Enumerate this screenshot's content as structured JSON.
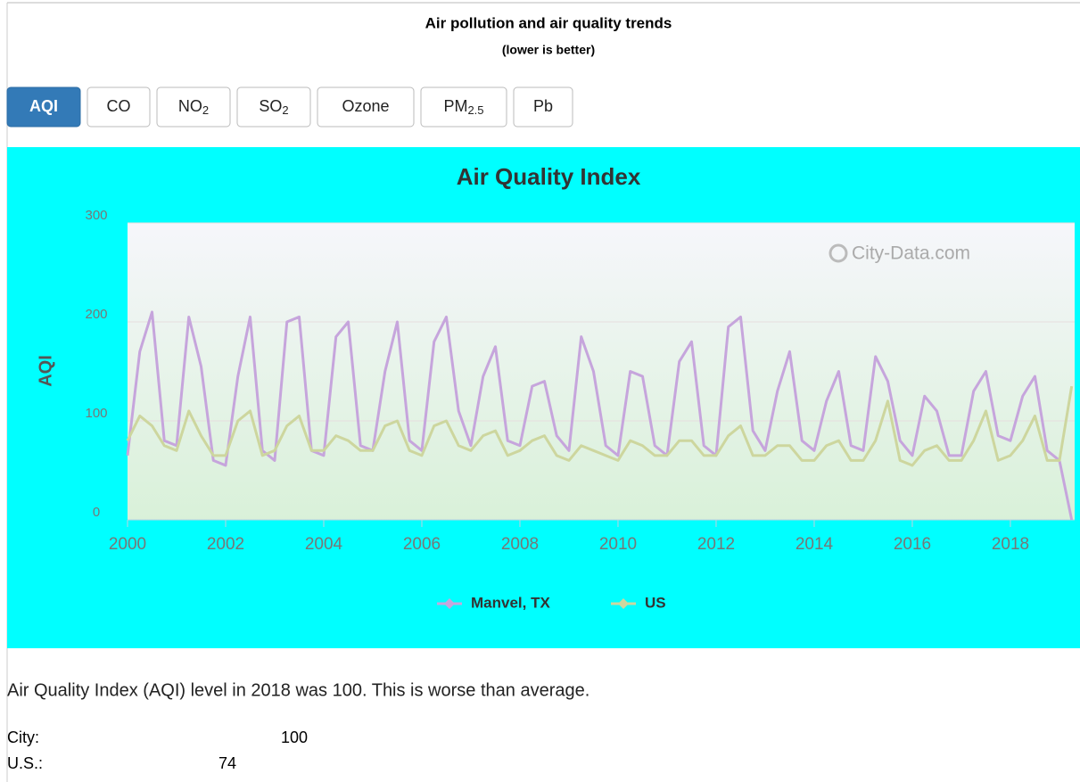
{
  "header": {
    "title": "Air pollution and air quality trends",
    "subtitle": "(lower is better)"
  },
  "tabs": [
    {
      "label": "AQI",
      "active": true
    },
    {
      "label": "CO"
    },
    {
      "label": "NO",
      "sub": "2"
    },
    {
      "label": "SO",
      "sub": "2"
    },
    {
      "label": "Ozone"
    },
    {
      "label": "PM",
      "sub": "2.5"
    },
    {
      "label": "Pb"
    }
  ],
  "chart_data": {
    "type": "line",
    "title": "Air Quality Index",
    "y_label": "AQI",
    "watermark": "City-Data.com",
    "x": [
      2000,
      2000.25,
      2000.5,
      2000.75,
      2001,
      2001.25,
      2001.5,
      2001.75,
      2002,
      2002.25,
      2002.5,
      2002.75,
      2003,
      2003.25,
      2003.5,
      2003.75,
      2004,
      2004.25,
      2004.5,
      2004.75,
      2005,
      2005.25,
      2005.5,
      2005.75,
      2006,
      2006.25,
      2006.5,
      2006.75,
      2007,
      2007.25,
      2007.5,
      2007.75,
      2008,
      2008.25,
      2008.5,
      2008.75,
      2009,
      2009.25,
      2009.5,
      2009.75,
      2010,
      2010.25,
      2010.5,
      2010.75,
      2011,
      2011.25,
      2011.5,
      2011.75,
      2012,
      2012.25,
      2012.5,
      2012.75,
      2013,
      2013.25,
      2013.5,
      2013.75,
      2014,
      2014.25,
      2014.5,
      2014.75,
      2015,
      2015.25,
      2015.5,
      2015.75,
      2016,
      2016.25,
      2016.5,
      2016.75,
      2017,
      2017.25,
      2017.5,
      2017.75,
      2018,
      2018.25,
      2018.5,
      2018.75,
      2019,
      2019.25
    ],
    "series": [
      {
        "name": "Manvel, TX",
        "color": "#c6a5dc",
        "values": [
          65,
          170,
          210,
          80,
          75,
          205,
          155,
          60,
          55,
          145,
          205,
          70,
          60,
          200,
          205,
          70,
          65,
          185,
          200,
          75,
          70,
          150,
          200,
          80,
          70,
          180,
          205,
          110,
          75,
          145,
          175,
          80,
          75,
          135,
          140,
          85,
          70,
          185,
          150,
          75,
          65,
          150,
          145,
          75,
          65,
          160,
          180,
          75,
          65,
          195,
          205,
          90,
          70,
          130,
          170,
          80,
          70,
          120,
          150,
          75,
          70,
          165,
          140,
          80,
          65,
          125,
          110,
          65,
          65,
          130,
          150,
          85,
          80,
          125,
          145,
          70,
          60,
          0
        ]
      },
      {
        "name": "US",
        "color": "#cdd69e",
        "values": [
          80,
          105,
          95,
          75,
          70,
          110,
          85,
          65,
          65,
          100,
          110,
          65,
          70,
          95,
          105,
          70,
          70,
          85,
          80,
          70,
          70,
          95,
          100,
          70,
          65,
          95,
          100,
          75,
          70,
          85,
          90,
          65,
          70,
          80,
          85,
          65,
          60,
          75,
          70,
          65,
          60,
          80,
          75,
          65,
          65,
          80,
          80,
          65,
          65,
          85,
          95,
          65,
          65,
          75,
          75,
          60,
          60,
          75,
          80,
          60,
          60,
          80,
          120,
          60,
          55,
          70,
          75,
          60,
          60,
          80,
          110,
          60,
          65,
          80,
          105,
          60,
          60,
          135
        ]
      }
    ],
    "xlim": [
      2000,
      2019.31
    ],
    "xticks": [
      2000,
      2002,
      2004,
      2006,
      2008,
      2010,
      2012,
      2014,
      2016,
      2018
    ],
    "ylim": [
      0,
      300
    ],
    "yticks": [
      0,
      100,
      200,
      300
    ],
    "grid": true,
    "legend": "bottom"
  },
  "summary": "Air Quality Index (AQI) level in 2018 was 100. This is worse than average.",
  "rows": [
    {
      "label": "City:",
      "value": "100"
    },
    {
      "label": "U.S.:",
      "value": "74"
    }
  ]
}
